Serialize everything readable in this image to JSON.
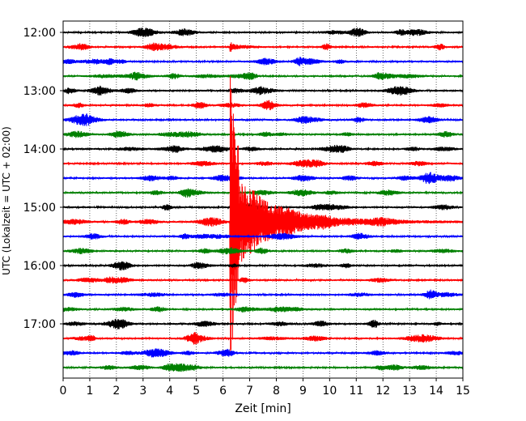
{
  "chart_data": {
    "type": "line",
    "title": "",
    "xlabel": "Zeit  [min]",
    "ylabel": "UTC (Lokalzeit = UTC + 02:00)",
    "xlim": [
      0,
      15
    ],
    "x_ticks": [
      "0",
      "1",
      "2",
      "3",
      "4",
      "5",
      "6",
      "7",
      "8",
      "9",
      "10",
      "11",
      "12",
      "13",
      "14",
      "15"
    ],
    "y_ticks": [
      "12:00",
      "13:00",
      "14:00",
      "15:00",
      "16:00",
      "17:00"
    ],
    "trace_start_time": "12:00",
    "trace_interval_min": 15,
    "trace_count": 24,
    "trace_colors": [
      "#000000",
      "#ff0000",
      "#0000ff",
      "#008000"
    ],
    "grid": "vertical dotted lines at each minute",
    "events": [
      {
        "trace": 1,
        "onset_min": 6.25,
        "description": "small local spike"
      },
      {
        "trace": 13,
        "onset_min": 6.25,
        "description": "large earthquake signal with coda"
      }
    ]
  }
}
